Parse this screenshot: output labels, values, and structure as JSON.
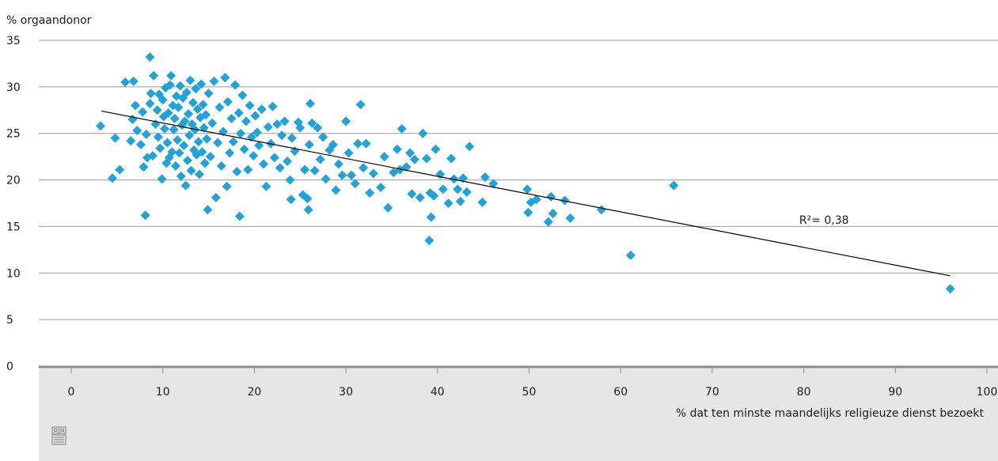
{
  "logo": {
    "name": "cbs-logo"
  },
  "chart_data": {
    "type": "scatter",
    "title": "",
    "xlabel": "% dat ten minste maandelijks religieuze dienst bezoekt",
    "ylabel": "% orgaandonor",
    "xlim": [
      0,
      100
    ],
    "ylim": [
      0,
      35
    ],
    "x_ticks": [
      0,
      10,
      20,
      30,
      40,
      50,
      60,
      70,
      80,
      90,
      100
    ],
    "y_ticks": [
      0,
      5,
      10,
      15,
      20,
      25,
      30,
      35
    ],
    "x_tick_labels": [
      "0",
      "10",
      "20",
      "30",
      "40",
      "50",
      "60",
      "70",
      "80",
      "90",
      "100"
    ],
    "y_tick_labels": [
      "0",
      "5",
      "10",
      "15",
      "20",
      "25",
      "30",
      "35"
    ],
    "grid": {
      "horizontal": true,
      "vertical": false
    },
    "marker": "diamond",
    "colors": {
      "points": "#1fa3d8",
      "trendline": "#000000",
      "grid": "#9a9a9a",
      "axis_band": "#e6e6e6",
      "axis_line": "#8c8c8c"
    },
    "trendline": {
      "type": "linear",
      "x": [
        3.3,
        96
      ],
      "y": [
        27.4,
        9.7
      ],
      "label": "R²= 0,38",
      "label_at": [
        79.5,
        15.3
      ]
    },
    "points": [
      [
        3.2,
        25.8
      ],
      [
        4.5,
        20.2
      ],
      [
        4.8,
        24.5
      ],
      [
        5.3,
        21.1
      ],
      [
        5.9,
        30.5
      ],
      [
        6.8,
        30.6
      ],
      [
        6.5,
        24.2
      ],
      [
        6.7,
        26.5
      ],
      [
        7.0,
        28.0
      ],
      [
        7.2,
        25.3
      ],
      [
        7.6,
        23.8
      ],
      [
        7.8,
        27.3
      ],
      [
        7.9,
        21.4
      ],
      [
        8.1,
        16.2
      ],
      [
        8.3,
        22.4
      ],
      [
        8.2,
        24.9
      ],
      [
        8.6,
        28.2
      ],
      [
        8.6,
        33.2
      ],
      [
        8.7,
        29.3
      ],
      [
        8.9,
        22.6
      ],
      [
        9.0,
        31.2
      ],
      [
        9.2,
        26.0
      ],
      [
        9.4,
        27.5
      ],
      [
        9.5,
        24.6
      ],
      [
        9.6,
        29.2
      ],
      [
        9.7,
        23.4
      ],
      [
        9.9,
        20.1
      ],
      [
        10.0,
        28.6
      ],
      [
        10.1,
        26.8
      ],
      [
        10.2,
        25.5
      ],
      [
        10.3,
        29.9
      ],
      [
        10.4,
        21.8
      ],
      [
        10.5,
        24.0
      ],
      [
        10.6,
        27.2
      ],
      [
        10.7,
        22.4
      ],
      [
        10.8,
        30.2
      ],
      [
        10.9,
        31.2
      ],
      [
        11.0,
        23.0
      ],
      [
        11.1,
        28.0
      ],
      [
        11.2,
        25.4
      ],
      [
        11.3,
        26.6
      ],
      [
        11.4,
        21.5
      ],
      [
        11.5,
        29.0
      ],
      [
        11.6,
        24.3
      ],
      [
        11.7,
        27.8
      ],
      [
        11.8,
        22.9
      ],
      [
        11.9,
        30.1
      ],
      [
        12.0,
        20.4
      ],
      [
        12.1,
        25.9
      ],
      [
        12.2,
        28.8
      ],
      [
        12.3,
        23.7
      ],
      [
        12.4,
        26.3
      ],
      [
        12.5,
        19.4
      ],
      [
        12.6,
        29.4
      ],
      [
        12.7,
        22.1
      ],
      [
        12.8,
        27.1
      ],
      [
        12.9,
        24.8
      ],
      [
        13.0,
        30.7
      ],
      [
        13.1,
        21.0
      ],
      [
        13.2,
        26.0
      ],
      [
        13.3,
        28.3
      ],
      [
        13.4,
        23.2
      ],
      [
        13.5,
        25.4
      ],
      [
        13.6,
        29.8
      ],
      [
        13.7,
        22.7
      ],
      [
        13.8,
        27.6
      ],
      [
        13.9,
        24.1
      ],
      [
        14.0,
        20.6
      ],
      [
        14.1,
        26.7
      ],
      [
        14.2,
        30.3
      ],
      [
        14.3,
        23.0
      ],
      [
        14.4,
        28.1
      ],
      [
        14.5,
        25.6
      ],
      [
        14.6,
        21.8
      ],
      [
        14.7,
        27.0
      ],
      [
        14.8,
        24.4
      ],
      [
        14.9,
        16.8
      ],
      [
        15.0,
        29.3
      ],
      [
        15.2,
        22.5
      ],
      [
        15.4,
        26.1
      ],
      [
        15.6,
        30.6
      ],
      [
        15.8,
        18.1
      ],
      [
        16.0,
        24.0
      ],
      [
        16.2,
        27.8
      ],
      [
        16.4,
        21.5
      ],
      [
        16.6,
        25.2
      ],
      [
        16.8,
        31.0
      ],
      [
        17.0,
        19.3
      ],
      [
        17.1,
        28.4
      ],
      [
        17.3,
        22.9
      ],
      [
        17.5,
        26.6
      ],
      [
        17.7,
        24.1
      ],
      [
        17.9,
        30.2
      ],
      [
        18.1,
        20.9
      ],
      [
        18.3,
        27.2
      ],
      [
        18.4,
        16.1
      ],
      [
        18.5,
        25.0
      ],
      [
        18.7,
        29.1
      ],
      [
        18.9,
        23.3
      ],
      [
        19.1,
        26.3
      ],
      [
        19.3,
        21.1
      ],
      [
        19.5,
        28.0
      ],
      [
        19.7,
        24.6
      ],
      [
        19.9,
        22.6
      ],
      [
        20.1,
        26.9
      ],
      [
        20.3,
        25.1
      ],
      [
        20.5,
        23.7
      ],
      [
        20.8,
        27.6
      ],
      [
        21.0,
        21.7
      ],
      [
        21.3,
        19.3
      ],
      [
        21.5,
        25.7
      ],
      [
        21.8,
        23.9
      ],
      [
        22.0,
        27.9
      ],
      [
        22.2,
        22.4
      ],
      [
        22.5,
        26.0
      ],
      [
        22.8,
        21.3
      ],
      [
        23.0,
        24.8
      ],
      [
        23.3,
        26.3
      ],
      [
        23.6,
        22.0
      ],
      [
        23.9,
        20.0
      ],
      [
        24.1,
        24.5
      ],
      [
        24.0,
        17.9
      ],
      [
        24.4,
        23.1
      ],
      [
        24.8,
        26.2
      ],
      [
        25.0,
        25.6
      ],
      [
        25.3,
        18.4
      ],
      [
        25.5,
        21.1
      ],
      [
        25.8,
        18.0
      ],
      [
        25.9,
        16.8
      ],
      [
        26.0,
        23.8
      ],
      [
        26.1,
        28.2
      ],
      [
        26.3,
        26.1
      ],
      [
        26.6,
        21.0
      ],
      [
        26.9,
        25.6
      ],
      [
        27.2,
        22.2
      ],
      [
        27.5,
        24.6
      ],
      [
        27.8,
        20.1
      ],
      [
        28.2,
        23.2
      ],
      [
        28.6,
        23.8
      ],
      [
        28.9,
        18.9
      ],
      [
        29.2,
        21.7
      ],
      [
        29.6,
        20.5
      ],
      [
        30.0,
        26.3
      ],
      [
        30.3,
        22.9
      ],
      [
        30.6,
        20.5
      ],
      [
        31.0,
        19.6
      ],
      [
        31.3,
        23.9
      ],
      [
        31.6,
        28.1
      ],
      [
        31.9,
        21.3
      ],
      [
        32.2,
        23.9
      ],
      [
        32.6,
        18.6
      ],
      [
        33.0,
        20.7
      ],
      [
        33.8,
        19.2
      ],
      [
        34.2,
        22.5
      ],
      [
        34.6,
        17.0
      ],
      [
        35.2,
        20.8
      ],
      [
        35.6,
        23.3
      ],
      [
        35.9,
        21.1
      ],
      [
        36.1,
        25.5
      ],
      [
        36.6,
        21.4
      ],
      [
        37.0,
        22.9
      ],
      [
        37.2,
        18.5
      ],
      [
        37.5,
        22.2
      ],
      [
        38.1,
        18.1
      ],
      [
        38.4,
        25.0
      ],
      [
        38.8,
        22.3
      ],
      [
        39.1,
        13.5
      ],
      [
        39.2,
        18.6
      ],
      [
        39.3,
        16.0
      ],
      [
        39.6,
        18.3
      ],
      [
        39.8,
        23.3
      ],
      [
        40.3,
        20.6
      ],
      [
        40.6,
        19.0
      ],
      [
        41.2,
        17.5
      ],
      [
        41.5,
        22.3
      ],
      [
        41.8,
        20.1
      ],
      [
        42.2,
        19.0
      ],
      [
        42.5,
        17.7
      ],
      [
        42.8,
        20.2
      ],
      [
        43.2,
        18.7
      ],
      [
        43.5,
        23.6
      ],
      [
        44.9,
        17.6
      ],
      [
        45.2,
        20.3
      ],
      [
        46.1,
        19.6
      ],
      [
        49.8,
        19.0
      ],
      [
        49.9,
        16.5
      ],
      [
        50.2,
        17.6
      ],
      [
        50.8,
        17.9
      ],
      [
        52.1,
        15.5
      ],
      [
        52.4,
        18.2
      ],
      [
        52.6,
        16.4
      ],
      [
        53.9,
        17.8
      ],
      [
        54.5,
        15.9
      ],
      [
        57.9,
        16.8
      ],
      [
        61.1,
        11.9
      ],
      [
        65.8,
        19.4
      ],
      [
        96.0,
        8.3
      ]
    ]
  }
}
